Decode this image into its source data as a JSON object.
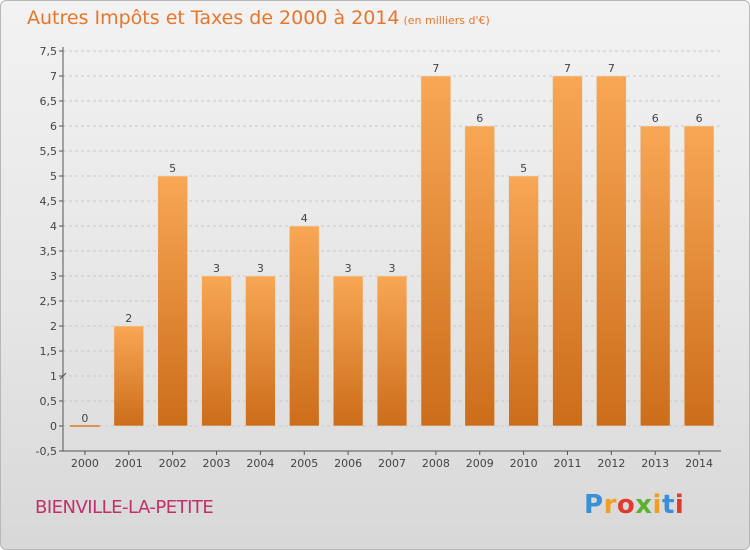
{
  "header": {
    "title": "Autres Impôts et Taxes de 2000 à 2014",
    "subtitle": "(en milliers d'€)"
  },
  "footer": {
    "place": "BIENVILLE-LA-PETITE",
    "logo_letters": [
      "P",
      "r",
      "o",
      "x",
      "i",
      "t",
      "i"
    ],
    "logo_colors": [
      "#3a8fd6",
      "#f0a020",
      "#e03b2f",
      "#5cb030",
      "#f0a020",
      "#3a8fd6",
      "#e03b2f"
    ]
  },
  "colors": {
    "bar_top": "#f8a755",
    "bar_bottom": "#cc6d1a",
    "axis": "#555555",
    "grid": "#c8c8c8"
  },
  "chart_data": {
    "type": "bar",
    "title": "Autres Impôts et Taxes de 2000 à 2014",
    "subtitle": "(en milliers d'€)",
    "categories": [
      "2000",
      "2001",
      "2002",
      "2003",
      "2004",
      "2005",
      "2006",
      "2007",
      "2008",
      "2009",
      "2010",
      "2011",
      "2012",
      "2013",
      "2014"
    ],
    "values": [
      0,
      2,
      5,
      3,
      3,
      4,
      3,
      3,
      7,
      6,
      5,
      7,
      7,
      6,
      6
    ],
    "ylim": [
      -0.5,
      7.5
    ],
    "yticks": [
      "-0,5",
      "0",
      "0,5",
      "1",
      "1,5",
      "2",
      "2,5",
      "3",
      "3,5",
      "4",
      "4,5",
      "5",
      "5,5",
      "6",
      "6,5",
      "7",
      "7,5"
    ],
    "grid": "dashed horizontal"
  }
}
